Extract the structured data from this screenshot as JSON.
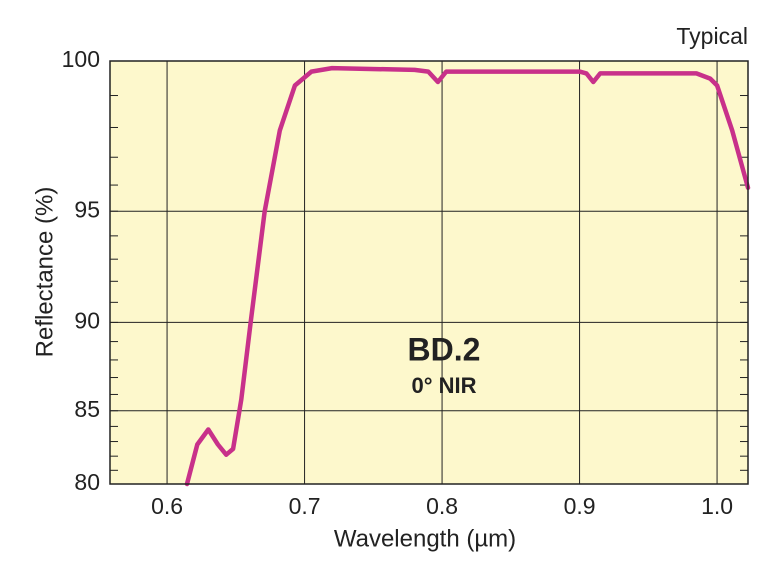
{
  "chart_data": {
    "type": "line",
    "title": "BD.2",
    "subtitle": "0° NIR",
    "annotation": "Typical",
    "x_label": "Wavelength (µm)",
    "y_label": "Reflectance (%)",
    "x": [
      0.6145,
      0.622,
      0.63,
      0.637,
      0.643,
      0.648,
      0.654,
      0.661,
      0.671,
      0.682,
      0.693,
      0.705,
      0.72,
      0.78,
      0.79,
      0.797,
      0.803,
      0.85,
      0.9,
      0.905,
      0.91,
      0.915,
      0.95,
      0.985,
      0.995,
      1.0,
      1.011,
      1.0225
    ],
    "series": [
      {
        "color": "#c8318a",
        "values": [
          80,
          82.8,
          83.8,
          82.8,
          82.1,
          82.5,
          85.7,
          90.1,
          95,
          97.9,
          99.3,
          99.7,
          99.8,
          99.75,
          99.7,
          99.4,
          99.7,
          99.7,
          99.7,
          99.65,
          99.4,
          99.65,
          99.65,
          99.65,
          99.5,
          99.3,
          97.9,
          95.9
        ]
      }
    ],
    "xlim": [
      0.5585,
      1.0225
    ],
    "xticks": [
      0.6,
      0.7,
      0.8,
      0.9,
      {
        "value": 1,
        "label": "1.0"
      }
    ],
    "ylim": [
      80,
      100
    ],
    "yticks": [
      80,
      85,
      90,
      95,
      100
    ],
    "yscale": "reflectance",
    "grid": true,
    "background": "#fdf8cc"
  }
}
